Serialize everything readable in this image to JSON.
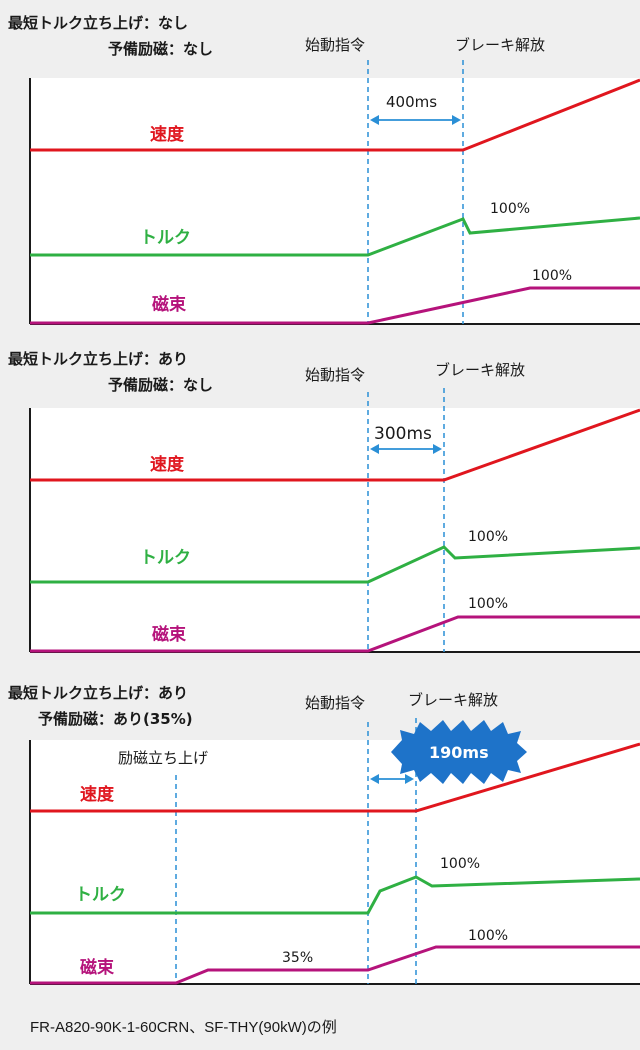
{
  "colors": {
    "speed": "#e0161e",
    "torque": "#2fb043",
    "flux": "#b5137b",
    "guide": "#2a8fd6",
    "axis": "#1a1a1a",
    "badge": "#1e73c9"
  },
  "signal_labels": {
    "speed": "速度",
    "torque": "トルク",
    "flux": "磁束"
  },
  "event_labels": {
    "start": "始動指令",
    "brake": "ブレーキ解放",
    "excite": "励磁立ち上げ"
  },
  "panels": [
    {
      "header_line1": "最短トルク立ち上げ：なし",
      "header_line2": "予備励磁：なし",
      "interval": "400ms",
      "torque_pct": "100%",
      "flux_pct": "100%"
    },
    {
      "header_line1": "最短トルク立ち上げ：あり",
      "header_line2": "予備励磁：なし",
      "interval": "300ms",
      "torque_pct": "100%",
      "flux_pct": "100%"
    },
    {
      "header_line1": "最短トルク立ち上げ：あり",
      "header_line2": "予備励磁：あり(35%)",
      "interval": "190ms",
      "torque_pct": "100%",
      "flux_pct": "100%",
      "flux_pre_pct": "35%"
    }
  ],
  "footer": "FR-A820-90K-1-60CRN、SF-THY(90kW)の例"
}
